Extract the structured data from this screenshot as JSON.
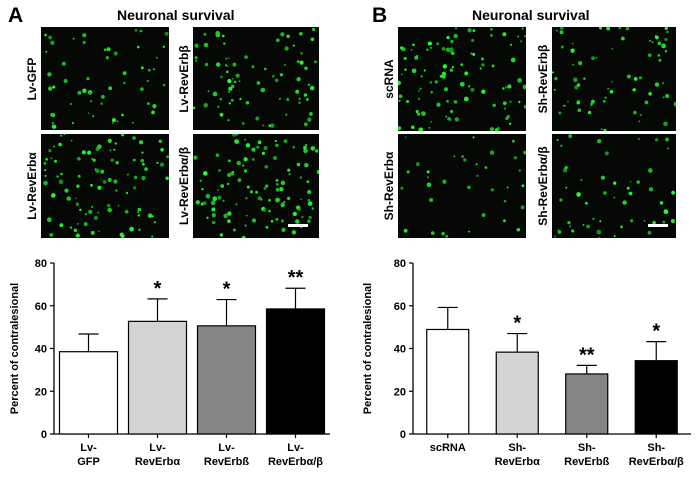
{
  "panels": [
    {
      "letter": "A",
      "title": "Neuronal survival",
      "images": [
        {
          "label": "Lv-GFP",
          "density": 55,
          "seed": 11
        },
        {
          "label": "Lv-RevErbβ",
          "density": 80,
          "seed": 23
        },
        {
          "label": "Lv-RevErbα",
          "density": 95,
          "seed": 37
        },
        {
          "label": "Lv-RevErbα/β",
          "density": 110,
          "seed": 41
        }
      ]
    },
    {
      "letter": "B",
      "title": "Neuronal survival",
      "images": [
        {
          "label": "scRNA",
          "density": 100,
          "seed": 53
        },
        {
          "label": "Sh-RevErbβ",
          "density": 70,
          "seed": 67
        },
        {
          "label": "Sh-RevErbα",
          "density": 35,
          "seed": 71
        },
        {
          "label": "Sh-RevErbα/β",
          "density": 50,
          "seed": 89
        }
      ]
    }
  ],
  "chart_data": [
    {
      "type": "bar",
      "title": "",
      "xlabel": "",
      "ylabel": "Percent of contralesional",
      "ylim": [
        0,
        80
      ],
      "yticks": [
        0,
        20,
        40,
        60,
        80
      ],
      "categories": [
        [
          "Lv-",
          "GFP"
        ],
        [
          "Lv-",
          "RevErbα"
        ],
        [
          "Lv-",
          "RevErbß"
        ],
        [
          "Lv-",
          "RevErbα/β"
        ]
      ],
      "values": [
        38.5,
        52.7,
        50.6,
        58.5
      ],
      "errors": [
        8.3,
        10.5,
        12.3,
        9.7
      ],
      "significance": [
        "",
        "*",
        "*",
        "**"
      ],
      "colors": [
        "#ffffff",
        "#d4d4d4",
        "#858585",
        "#000000"
      ]
    },
    {
      "type": "bar",
      "title": "",
      "xlabel": "",
      "ylabel": "Percent of contralesional",
      "ylim": [
        0,
        80
      ],
      "yticks": [
        0,
        20,
        40,
        60,
        80
      ],
      "categories": [
        [
          "scRNA"
        ],
        [
          "Sh-",
          "RevErbα"
        ],
        [
          "Sh-",
          "RevErbß"
        ],
        [
          "Sh-",
          "RevErbα/β"
        ]
      ],
      "values": [
        48.9,
        38.3,
        28.1,
        34.3
      ],
      "errors": [
        10.3,
        8.7,
        4.0,
        8.9
      ],
      "significance": [
        "",
        "*",
        "**",
        "*"
      ],
      "colors": [
        "#ffffff",
        "#d4d4d4",
        "#858585",
        "#000000"
      ]
    }
  ]
}
